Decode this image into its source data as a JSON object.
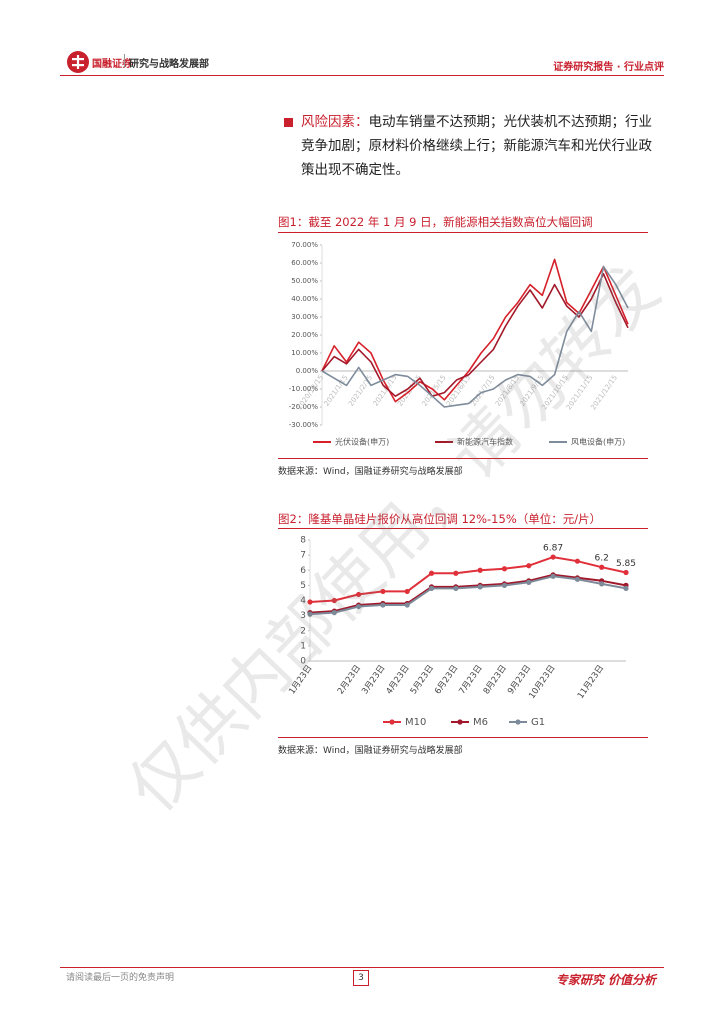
{
  "header": {
    "logo": "国融证券",
    "dept": "研究与战略发展部",
    "report_type": "证券研究报告 · 行业点评"
  },
  "body": {
    "risk_label": "风险因素：",
    "risk_text": "电动车销量不达预期；光伏装机不达预期；行业竞争加剧；原材料价格继续上行；新能源汽车和光伏行业政策出现不确定性。"
  },
  "chart_data": [
    {
      "type": "line",
      "title": "图1：截至 2022 年 1 月 9 日，新能源相关指数高位大幅回调",
      "categories": [
        "2020/12/15",
        null,
        "2021/1/15",
        null,
        "2021/2/15",
        null,
        "2021/3/15",
        null,
        "2021/4/15",
        null,
        "2021/5/15",
        null,
        "2021/6/15",
        null,
        "2021/7/15",
        null,
        "2021/8/15",
        null,
        "2021/9/15",
        null,
        "2021/10/15",
        null,
        "2021/11/15",
        null,
        "2021/12/15",
        null
      ],
      "series": [
        {
          "name": "光伏设备(申万)",
          "color": "#d7202a",
          "values": [
            0,
            14,
            5,
            16,
            10,
            -5,
            -17,
            -12,
            -6,
            -10,
            -16,
            -8,
            0,
            10,
            18,
            30,
            38,
            48,
            42,
            62,
            38,
            32,
            45,
            58,
            42,
            26
          ]
        },
        {
          "name": "新能源汽车指数",
          "color": "#a3192a",
          "values": [
            0,
            8,
            4,
            12,
            5,
            -8,
            -14,
            -10,
            -4,
            -14,
            -12,
            -5,
            -2,
            5,
            12,
            25,
            36,
            45,
            35,
            48,
            36,
            30,
            40,
            54,
            38,
            24
          ]
        },
        {
          "name": "风电设备(申万)",
          "color": "#7f8c9c",
          "values": [
            0,
            -4,
            -8,
            2,
            -8,
            -5,
            -2,
            -3,
            -8,
            -14,
            -20,
            -19,
            -18,
            -12,
            -10,
            -5,
            -2,
            -3,
            -8,
            -2,
            22,
            33,
            22,
            58,
            48,
            35
          ]
        }
      ],
      "ylim": [
        -30,
        70
      ],
      "yticks": [
        {
          "value": 70,
          "label": "70.00%"
        },
        {
          "value": 60,
          "label": "60.00%"
        },
        {
          "value": 50,
          "label": "50.00%"
        },
        {
          "value": 40,
          "label": "40.00%"
        },
        {
          "value": 30,
          "label": "30.00%"
        },
        {
          "value": 20,
          "label": "20.00%"
        },
        {
          "value": 10,
          "label": "10.00%"
        },
        {
          "value": 0,
          "label": "0.00%"
        },
        {
          "value": -10,
          "label": "-10.00%"
        },
        {
          "value": -20,
          "label": "-20.00%"
        },
        {
          "value": -30,
          "label": "-30.00%"
        }
      ],
      "markers": false,
      "legend": "bottom",
      "source": "数据来源：Wind，国融证券研究与战略发展部"
    },
    {
      "type": "line",
      "title": "图2：隆基单晶硅片报价从高位回调 12%-15%（单位：元/片）",
      "categories": [
        "1月23日",
        null,
        "2月23日",
        "3月23日",
        "4月23日",
        "5月23日",
        "6月23日",
        "7月23日",
        "8月23日",
        "9月23日",
        "10月23日",
        null,
        "11月23日",
        null
      ],
      "series": [
        {
          "name": "M10",
          "color": "#e0303a",
          "values": [
            3.9,
            4.0,
            4.4,
            4.6,
            4.6,
            5.8,
            5.8,
            6.0,
            6.1,
            6.3,
            6.87,
            6.6,
            6.2,
            5.85
          ],
          "value_labels": [
            null,
            null,
            null,
            null,
            null,
            null,
            null,
            null,
            null,
            null,
            "6.87",
            null,
            "6.2",
            "5.85"
          ]
        },
        {
          "name": "M6",
          "color": "#a0182b",
          "values": [
            3.2,
            3.3,
            3.7,
            3.8,
            3.8,
            4.9,
            4.9,
            5.0,
            5.1,
            5.3,
            5.7,
            5.5,
            5.3,
            5.0
          ]
        },
        {
          "name": "G1",
          "color": "#7d8a99",
          "values": [
            3.1,
            3.2,
            3.6,
            3.7,
            3.7,
            4.8,
            4.8,
            4.9,
            5.0,
            5.2,
            5.6,
            5.4,
            5.1,
            4.8
          ]
        }
      ],
      "ylim": [
        0,
        8
      ],
      "yticks": [
        0,
        1,
        2,
        3,
        4,
        5,
        6,
        7,
        8
      ],
      "markers": true,
      "legend": "bottom",
      "source": "数据来源：Wind，国融证券研究与战略发展部"
    }
  ],
  "footer": {
    "disclaimer": "请阅读最后一页的免责声明",
    "page": "3",
    "slogan": "专家研究 价值分析"
  },
  "watermark": "仅供内部使用，请勿转发"
}
